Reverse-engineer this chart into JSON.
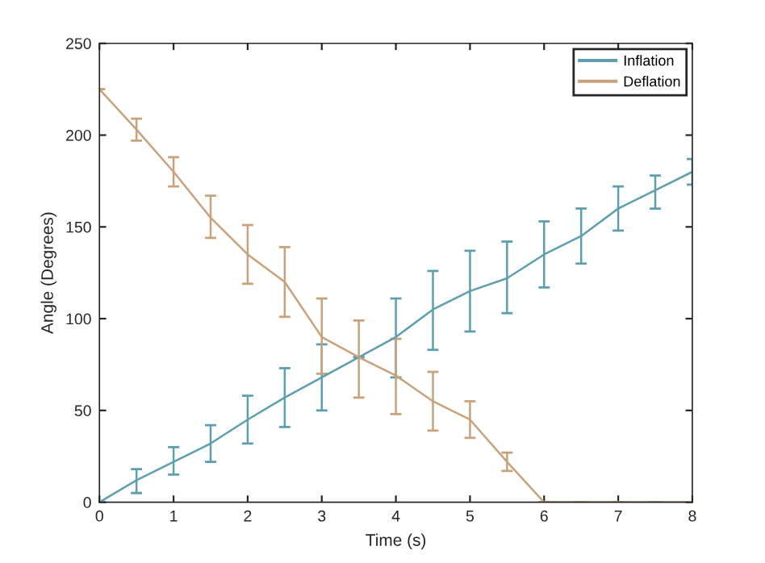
{
  "chart_data": {
    "type": "line",
    "xlabel": "Time (s)",
    "ylabel": "Angle (Degrees)",
    "x": [
      0,
      0.5,
      1,
      1.5,
      2,
      2.5,
      3,
      3.5,
      4,
      4.5,
      5,
      5.5,
      6,
      6.5,
      7,
      7.5,
      8
    ],
    "xlim": [
      0,
      8
    ],
    "xticks": [
      0,
      1,
      2,
      3,
      4,
      5,
      6,
      7,
      8
    ],
    "ylim": [
      0,
      250
    ],
    "yticks": [
      0,
      50,
      100,
      150,
      200,
      250
    ],
    "grid": false,
    "legend": "top right",
    "series": [
      {
        "name": "Inflation",
        "color": "#5e9fae",
        "values": [
          0,
          12,
          22,
          32,
          45,
          57,
          68,
          79,
          90,
          105,
          115,
          122,
          135,
          145,
          160,
          170,
          180
        ],
        "errors": [
          null,
          [
            5,
            18
          ],
          [
            15,
            30
          ],
          [
            22,
            42
          ],
          [
            32,
            58
          ],
          [
            41,
            73
          ],
          [
            50,
            86
          ],
          null,
          [
            68,
            111
          ],
          [
            83,
            126
          ],
          [
            93,
            137
          ],
          [
            103,
            142
          ],
          [
            117,
            153
          ],
          [
            130,
            160
          ],
          [
            148,
            172
          ],
          [
            160,
            178
          ],
          [
            173,
            187
          ]
        ]
      },
      {
        "name": "Deflation",
        "color": "#c9a27c",
        "values": [
          225,
          203,
          180,
          155,
          135,
          120,
          90,
          79,
          69,
          55,
          45,
          22,
          0,
          0,
          0,
          0,
          0
        ],
        "errors": [
          null,
          [
            197,
            209
          ],
          [
            172,
            188
          ],
          [
            144,
            167
          ],
          [
            119,
            151
          ],
          [
            101,
            139
          ],
          [
            70,
            111
          ],
          [
            57,
            99
          ],
          [
            48,
            89
          ],
          [
            39,
            71
          ],
          [
            35,
            55
          ],
          [
            17,
            27
          ],
          null,
          null,
          null,
          null,
          null
        ]
      }
    ]
  }
}
